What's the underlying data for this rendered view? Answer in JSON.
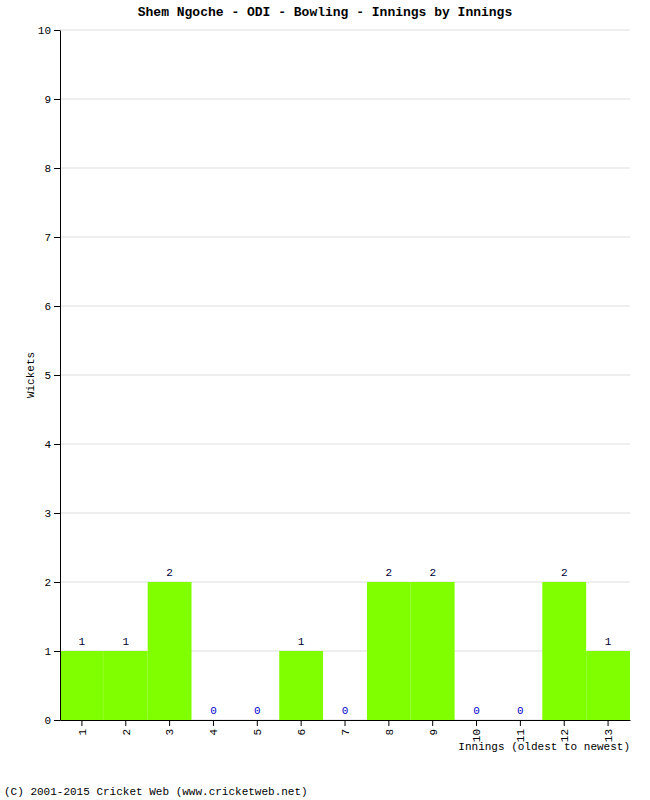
{
  "chart_data": {
    "type": "bar",
    "title": "Shem Ngoche - ODI - Bowling - Innings by Innings",
    "x_label": "Innings (oldest to newest)",
    "y_label": "Wickets",
    "annotations": [
      "(C) 2001-2015 Cricket Web (www.cricketweb.net)"
    ],
    "categories": [
      "1",
      "2",
      "3",
      "4",
      "5",
      "6",
      "7",
      "8",
      "9",
      "10",
      "11",
      "12",
      "13"
    ],
    "values": [
      1,
      1,
      2,
      0,
      0,
      1,
      0,
      2,
      2,
      0,
      0,
      2,
      1
    ],
    "color": "#80ff00",
    "ylim": [
      0,
      10
    ],
    "yticks": [
      0,
      1,
      2,
      3,
      4,
      5,
      6,
      7,
      8,
      9,
      10
    ],
    "grid": true,
    "data_labels": true
  }
}
